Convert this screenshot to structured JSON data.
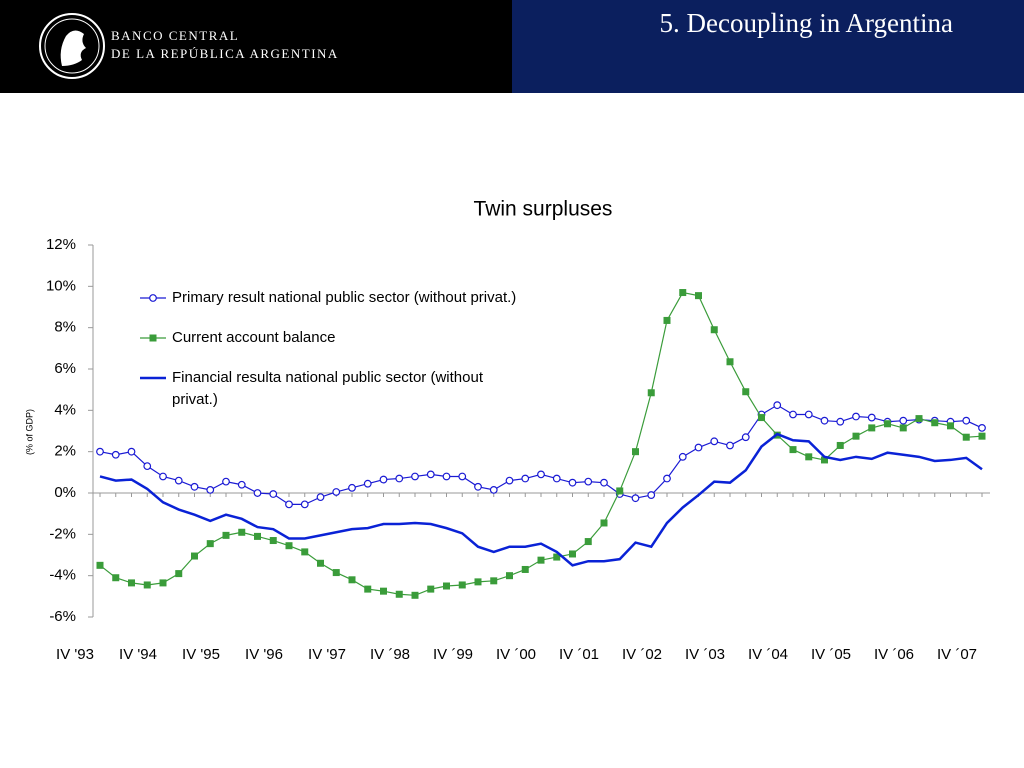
{
  "header": {
    "bank_line1": "BANCO CENTRAL",
    "bank_line2": "DE LA REPÚBLICA ARGENTINA",
    "slide_title": "5. Decoupling in Argentina"
  },
  "chart_data": {
    "type": "line",
    "title": "Twin surpluses",
    "y_label": "(% of GDP)",
    "categories": [
      "IV '93",
      null,
      null,
      null,
      "IV '94",
      null,
      null,
      null,
      "IV '95",
      null,
      null,
      null,
      "IV '96",
      null,
      null,
      null,
      "IV '97",
      null,
      null,
      null,
      "IV ´98",
      null,
      null,
      null,
      "IV ´99",
      null,
      null,
      null,
      "IV ´00",
      null,
      null,
      null,
      "IV ´01",
      null,
      null,
      null,
      "IV ´02",
      null,
      null,
      null,
      "IV ´03",
      null,
      null,
      null,
      "IV ´04",
      null,
      null,
      null,
      "IV ´05",
      null,
      null,
      null,
      "IV ´06",
      null,
      null,
      null,
      "IV ´07"
    ],
    "ylim": [
      -6,
      12
    ],
    "yticks": [
      {
        "value": -6,
        "label": "-6%"
      },
      {
        "value": -4,
        "label": "-4%"
      },
      {
        "value": -2,
        "label": "-2%"
      },
      {
        "value": 0,
        "label": "0%"
      },
      {
        "value": 2,
        "label": "2%"
      },
      {
        "value": 4,
        "label": "4%"
      },
      {
        "value": 6,
        "label": "6%"
      },
      {
        "value": 8,
        "label": "8%"
      },
      {
        "value": 10,
        "label": "10%"
      },
      {
        "value": 12,
        "label": "12%"
      }
    ],
    "series": [
      {
        "name": "Primary result national public sector (without privat.)",
        "color": "#1a1ad4",
        "marker": "circle",
        "values": [
          2.0,
          1.85,
          2.0,
          1.3,
          0.8,
          0.6,
          0.3,
          0.15,
          0.55,
          0.4,
          0.0,
          -0.05,
          -0.55,
          -0.55,
          -0.2,
          0.05,
          0.25,
          0.45,
          0.65,
          0.7,
          0.8,
          0.9,
          0.8,
          0.8,
          0.3,
          0.15,
          0.6,
          0.7,
          0.9,
          0.7,
          0.5,
          0.55,
          0.5,
          -0.05,
          -0.25,
          -0.1,
          0.7,
          1.75,
          2.2,
          2.5,
          2.3,
          2.7,
          3.8,
          4.25,
          3.8,
          3.8,
          3.5,
          3.45,
          3.7,
          3.65,
          3.45,
          3.5,
          3.55,
          3.5,
          3.45,
          3.5,
          3.15
        ]
      },
      {
        "name": "Current account balance",
        "color": "#3a9c3a",
        "marker": "square",
        "values": [
          -3.5,
          -4.1,
          -4.35,
          -4.45,
          -4.35,
          -3.9,
          -3.05,
          -2.45,
          -2.05,
          -1.9,
          -2.1,
          -2.3,
          -2.55,
          -2.85,
          -3.4,
          -3.85,
          -4.2,
          -4.65,
          -4.75,
          -4.9,
          -4.95,
          -4.65,
          -4.5,
          -4.45,
          -4.3,
          -4.25,
          -4.0,
          -3.7,
          -3.25,
          -3.1,
          -2.95,
          -2.35,
          -1.45,
          0.1,
          2.0,
          4.85,
          8.35,
          9.7,
          9.55,
          7.9,
          6.35,
          4.9,
          3.65,
          2.8,
          2.1,
          1.75,
          1.6,
          2.3,
          2.75,
          3.15,
          3.35,
          3.15,
          3.6,
          3.4,
          3.25,
          2.7,
          2.75
        ]
      },
      {
        "name": "Financial resulta national public sector (without privat.)",
        "color": "#0a22d6",
        "marker": "none",
        "values": [
          0.8,
          0.6,
          0.65,
          0.2,
          -0.45,
          -0.8,
          -1.05,
          -1.35,
          -1.05,
          -1.25,
          -1.65,
          -1.75,
          -2.2,
          -2.2,
          -2.05,
          -1.9,
          -1.75,
          -1.7,
          -1.5,
          -1.5,
          -1.45,
          -1.5,
          -1.7,
          -1.95,
          -2.6,
          -2.85,
          -2.6,
          -2.6,
          -2.45,
          -2.85,
          -3.5,
          -3.3,
          -3.3,
          -3.2,
          -2.4,
          -2.6,
          -1.45,
          -0.7,
          -0.1,
          0.55,
          0.5,
          1.1,
          2.25,
          2.85,
          2.55,
          2.5,
          1.75,
          1.6,
          1.75,
          1.65,
          1.95,
          1.85,
          1.75,
          1.55,
          1.6,
          1.7,
          1.15
        ]
      }
    ]
  }
}
